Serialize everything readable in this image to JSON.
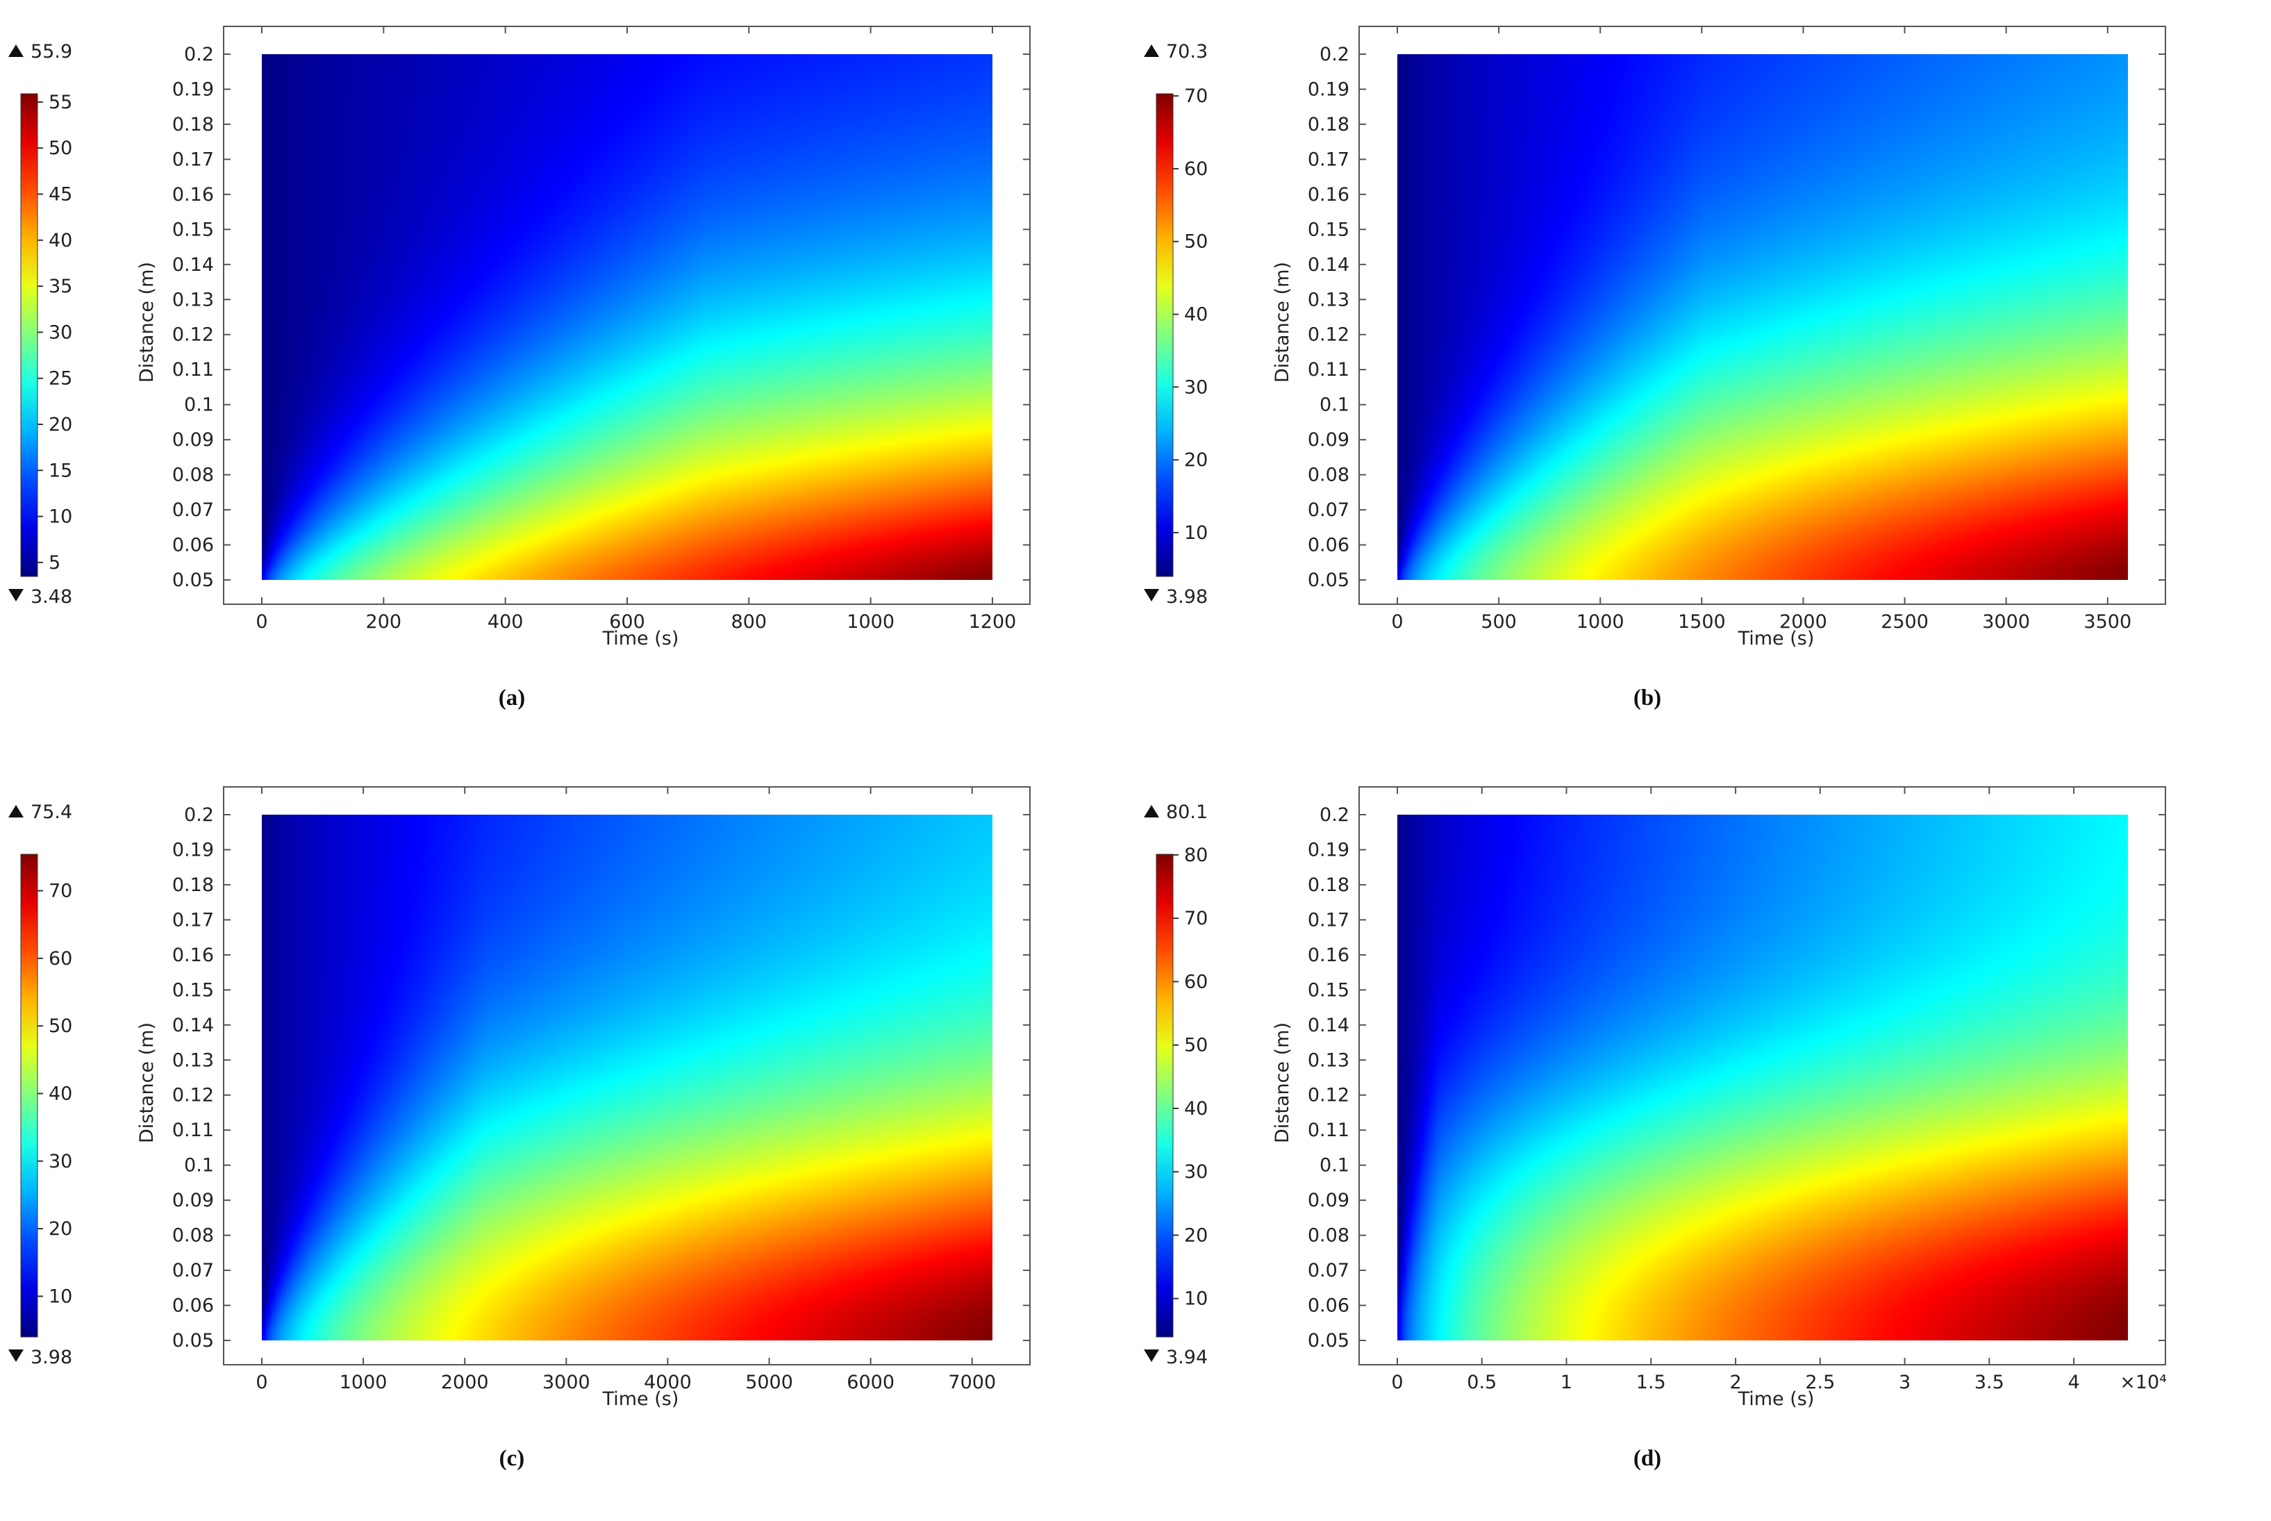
{
  "charts": [
    {
      "caption": "(a)",
      "chart_data": {
        "type": "heatmap",
        "xlabel": "Time (s)",
        "ylabel": "Distance (m)",
        "xlim": [
          0,
          1200
        ],
        "ylim": [
          0.05,
          0.2
        ],
        "x_ticks": [
          0,
          200,
          400,
          600,
          800,
          1000,
          1200
        ],
        "x_tick_labels": [
          "0",
          "200",
          "400",
          "600",
          "800",
          "1000",
          "1200"
        ],
        "x_multiplier": "",
        "y_ticks": [
          0.05,
          0.06,
          0.07,
          0.08,
          0.09,
          0.1,
          0.11,
          0.12,
          0.13,
          0.14,
          0.15,
          0.16,
          0.17,
          0.18,
          0.19,
          0.2
        ],
        "y_tick_labels": [
          "0.05",
          "0.06",
          "0.07",
          "0.08",
          "0.09",
          "0.1",
          "0.11",
          "0.12",
          "0.13",
          "0.14",
          "0.15",
          "0.16",
          "0.17",
          "0.18",
          "0.19",
          "0.2"
        ],
        "colorbar": {
          "max_label": "55.9",
          "min_label": "3.48",
          "max": 55.9,
          "min": 3.48,
          "ticks": [
            5,
            10,
            15,
            20,
            25,
            30,
            35,
            40,
            45,
            50,
            55
          ],
          "tick_labels": [
            "5",
            "10",
            "15",
            "20",
            "25",
            "30",
            "35",
            "40",
            "45",
            "50",
            "55"
          ],
          "colormap": "jet"
        },
        "field": {
          "bottom_max": 55.9,
          "bottom_min": 3.48,
          "top_end": 10,
          "front_speed": 1.1,
          "sharpness": 1.3,
          "xmax": 1200
        }
      }
    },
    {
      "caption": "(b)",
      "chart_data": {
        "type": "heatmap",
        "xlabel": "Time (s)",
        "ylabel": "Distance (m)",
        "xlim": [
          0,
          3600
        ],
        "ylim": [
          0.05,
          0.2
        ],
        "x_ticks": [
          0,
          500,
          1000,
          1500,
          2000,
          2500,
          3000,
          3500
        ],
        "x_tick_labels": [
          "0",
          "500",
          "1000",
          "1500",
          "2000",
          "2500",
          "3000",
          "3500"
        ],
        "x_multiplier": "",
        "y_ticks": [
          0.05,
          0.06,
          0.07,
          0.08,
          0.09,
          0.1,
          0.11,
          0.12,
          0.13,
          0.14,
          0.15,
          0.16,
          0.17,
          0.18,
          0.19,
          0.2
        ],
        "y_tick_labels": [
          "0.05",
          "0.06",
          "0.07",
          "0.08",
          "0.09",
          "0.1",
          "0.11",
          "0.12",
          "0.13",
          "0.14",
          "0.15",
          "0.16",
          "0.17",
          "0.18",
          "0.19",
          "0.2"
        ],
        "colorbar": {
          "max_label": "70.3",
          "min_label": "3.98",
          "max": 70.3,
          "min": 3.98,
          "ticks": [
            10,
            20,
            30,
            40,
            50,
            60,
            70
          ],
          "tick_labels": [
            "10",
            "20",
            "30",
            "40",
            "50",
            "60",
            "70"
          ],
          "colormap": "jet"
        },
        "field": {
          "bottom_max": 70.3,
          "bottom_min": 3.98,
          "top_end": 20,
          "front_speed": 1.6,
          "sharpness": 1.5,
          "xmax": 3600
        }
      }
    },
    {
      "caption": "(c)",
      "chart_data": {
        "type": "heatmap",
        "xlabel": "Time (s)",
        "ylabel": "Distance (m)",
        "xlim": [
          0,
          7200
        ],
        "ylim": [
          0.05,
          0.2
        ],
        "x_ticks": [
          0,
          1000,
          2000,
          3000,
          4000,
          5000,
          6000,
          7000
        ],
        "x_tick_labels": [
          "0",
          "1000",
          "2000",
          "3000",
          "4000",
          "5000",
          "6000",
          "7000"
        ],
        "x_multiplier": "",
        "y_ticks": [
          0.05,
          0.06,
          0.07,
          0.08,
          0.09,
          0.1,
          0.11,
          0.12,
          0.13,
          0.14,
          0.15,
          0.16,
          0.17,
          0.18,
          0.19,
          0.2
        ],
        "y_tick_labels": [
          "0.05",
          "0.06",
          "0.07",
          "0.08",
          "0.09",
          "0.1",
          "0.11",
          "0.12",
          "0.13",
          "0.14",
          "0.15",
          "0.16",
          "0.17",
          "0.18",
          "0.19",
          "0.2"
        ],
        "colorbar": {
          "max_label": "75.4",
          "min_label": "3.98",
          "max": 75.4,
          "min": 3.98,
          "ticks": [
            10,
            20,
            30,
            40,
            50,
            60,
            70
          ],
          "tick_labels": [
            "10",
            "20",
            "30",
            "40",
            "50",
            "60",
            "70"
          ],
          "colormap": "jet"
        },
        "field": {
          "bottom_max": 75.4,
          "bottom_min": 3.98,
          "top_end": 26,
          "front_speed": 2.2,
          "sharpness": 1.7,
          "xmax": 7200
        }
      }
    },
    {
      "caption": "(d)",
      "chart_data": {
        "type": "heatmap",
        "xlabel": "Time (s)",
        "ylabel": "Distance (m)",
        "xlim": [
          0,
          43200
        ],
        "ylim": [
          0.05,
          0.2
        ],
        "x_ticks": [
          0,
          5000,
          10000,
          15000,
          20000,
          25000,
          30000,
          35000,
          40000
        ],
        "x_tick_labels": [
          "0",
          "0.5",
          "1",
          "1.5",
          "2",
          "2.5",
          "3",
          "3.5",
          "4"
        ],
        "x_multiplier": "×10⁴",
        "y_ticks": [
          0.05,
          0.06,
          0.07,
          0.08,
          0.09,
          0.1,
          0.11,
          0.12,
          0.13,
          0.14,
          0.15,
          0.16,
          0.17,
          0.18,
          0.19,
          0.2
        ],
        "y_tick_labels": [
          "0.05",
          "0.06",
          "0.07",
          "0.08",
          "0.09",
          "0.1",
          "0.11",
          "0.12",
          "0.13",
          "0.14",
          "0.15",
          "0.16",
          "0.17",
          "0.18",
          "0.19",
          "0.2"
        ],
        "colorbar": {
          "max_label": "80.1",
          "min_label": "3.94",
          "max": 80.1,
          "min": 3.94,
          "ticks": [
            10,
            20,
            30,
            40,
            50,
            60,
            70,
            80
          ],
          "tick_labels": [
            "10",
            "20",
            "30",
            "40",
            "50",
            "60",
            "70",
            "80"
          ],
          "colormap": "jet"
        },
        "field": {
          "bottom_max": 80.1,
          "bottom_min": 3.94,
          "top_end": 32,
          "front_speed": 12,
          "sharpness": 2.0,
          "xmax": 43200
        }
      }
    }
  ]
}
